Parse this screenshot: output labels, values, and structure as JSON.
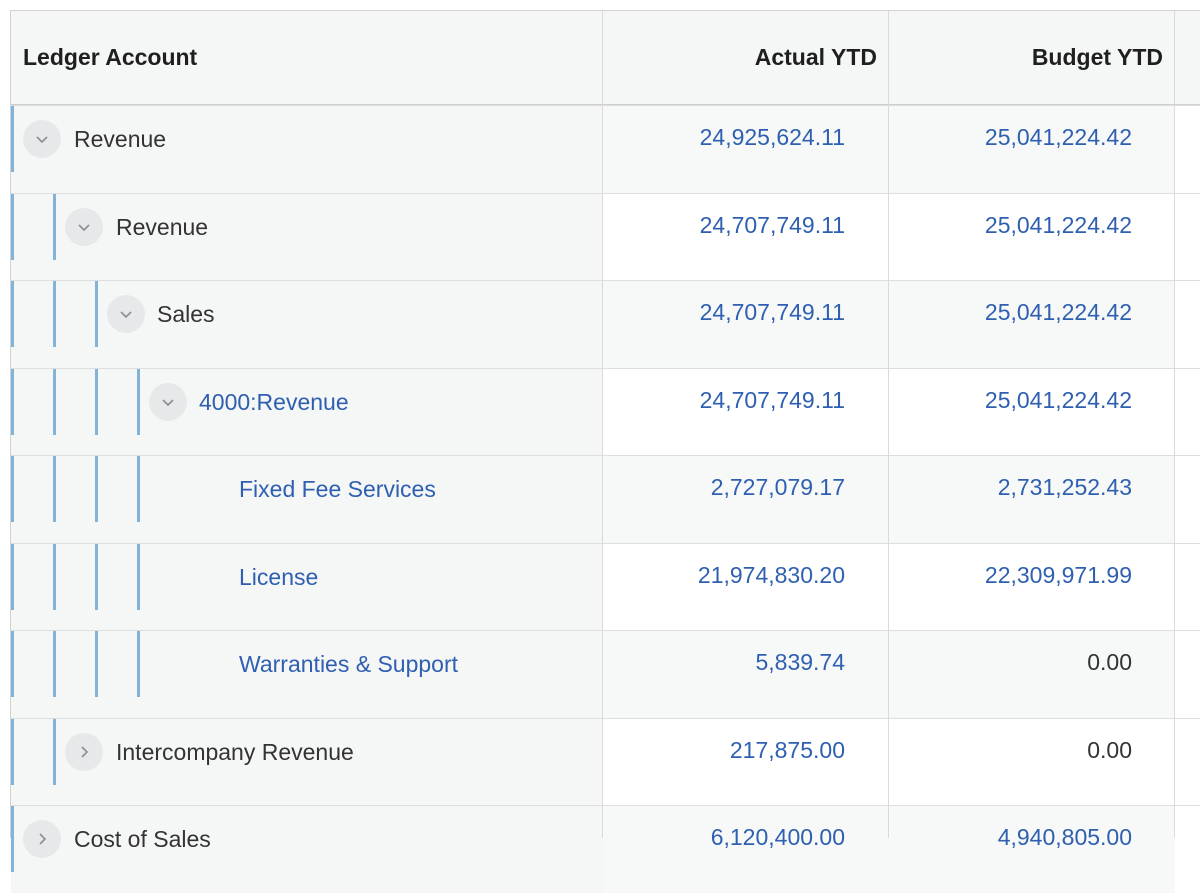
{
  "columns": {
    "account": "Ledger Account",
    "actual": "Actual YTD",
    "budget": "Budget YTD"
  },
  "rows": [
    {
      "label": "Revenue",
      "actual": "24,925,624.11",
      "budget": "25,041,224.42",
      "level": 0,
      "toggle": "expanded"
    },
    {
      "label": "Revenue",
      "actual": "24,707,749.11",
      "budget": "25,041,224.42",
      "level": 1,
      "toggle": "expanded"
    },
    {
      "label": "Sales",
      "actual": "24,707,749.11",
      "budget": "25,041,224.42",
      "level": 2,
      "toggle": "expanded"
    },
    {
      "label": "4000:Revenue",
      "actual": "24,707,749.11",
      "budget": "25,041,224.42",
      "level": 3,
      "toggle": "expanded"
    },
    {
      "label": "Fixed Fee Services",
      "actual": "2,727,079.17",
      "budget": "2,731,252.43",
      "level": 4,
      "toggle": "none"
    },
    {
      "label": "License",
      "actual": "21,974,830.20",
      "budget": "22,309,971.99",
      "level": 4,
      "toggle": "none"
    },
    {
      "label": "Warranties & Support",
      "actual": "5,839.74",
      "budget": "0.00",
      "level": 4,
      "toggle": "none"
    },
    {
      "label": "Intercompany Revenue",
      "actual": "217,875.00",
      "budget": "0.00",
      "level": 1,
      "toggle": "collapsed"
    },
    {
      "label": "Cost of Sales",
      "actual": "6,120,400.00",
      "budget": "4,940,805.00",
      "level": 0,
      "toggle": "collapsed"
    }
  ],
  "colors": {
    "link": "#2e5fb0",
    "guide": "#82b4d9",
    "header_bg": "#f5f6f6"
  }
}
